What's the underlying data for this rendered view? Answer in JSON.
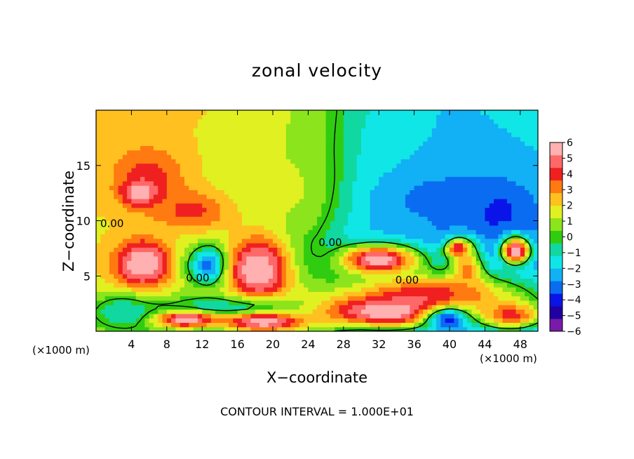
{
  "chart_data": {
    "type": "heatmap",
    "title": "zonal velocity",
    "xlabel": "X−coordinate",
    "ylabel": "Z−coordinate",
    "x_scale_label": "(×1000 m)",
    "xlim": [
      0,
      50
    ],
    "ylim": [
      0,
      20
    ],
    "x_ticks": [
      4,
      8,
      12,
      16,
      20,
      24,
      28,
      32,
      36,
      40,
      44,
      48
    ],
    "y_ticks": [
      5,
      10,
      15
    ],
    "colorbar": {
      "min": -6,
      "max": 6,
      "ticks": [
        6,
        5,
        4,
        3,
        2,
        1,
        0,
        -1,
        -2,
        -3,
        -4,
        -5,
        -6
      ],
      "tick_labels": [
        "6",
        "5",
        "4",
        "3",
        "2",
        "1",
        "0",
        "−1",
        "−2",
        "−3",
        "−4",
        "−5",
        "−6"
      ],
      "colors": [
        "#7a1aa8",
        "#2000a0",
        "#0a14e8",
        "#0a6cf0",
        "#12b0f4",
        "#10e6e6",
        "#10d8a0",
        "#30cc10",
        "#8ce41c",
        "#e0f020",
        "#ffc020",
        "#ff7a10",
        "#f02020",
        "#ff6868",
        "#ffb0b0"
      ]
    },
    "contour_labels": [
      {
        "text": "0.00",
        "x": 1.8,
        "y": 9.7
      },
      {
        "text": "0.00",
        "x": 11.5,
        "y": 4.8
      },
      {
        "text": "0.00",
        "x": 26.5,
        "y": 8.0
      },
      {
        "text": "0.00",
        "x": 35.2,
        "y": 4.6
      }
    ],
    "field": {
      "base_gradient": [
        {
          "x": 0,
          "value": 2.0
        },
        {
          "x": 16,
          "value": 1.5
        },
        {
          "x": 25,
          "value": 0.5
        },
        {
          "x": 30,
          "value": -1.5
        },
        {
          "x": 40,
          "value": -2.5
        },
        {
          "x": 50,
          "value": -2.2
        }
      ],
      "features": [
        {
          "x": 6,
          "y": 14,
          "rx": 4.5,
          "ry": 3,
          "value": 4
        },
        {
          "x": 5,
          "y": 12.5,
          "rx": 2.2,
          "ry": 1.2,
          "value": 6
        },
        {
          "x": 11,
          "y": 11,
          "rx": 5,
          "ry": 2,
          "value": 4
        },
        {
          "x": 20,
          "y": 13,
          "rx": 6,
          "ry": 3,
          "value": 1.5
        },
        {
          "x": 5,
          "y": 6,
          "rx": 3.6,
          "ry": 2.6,
          "value": 5
        },
        {
          "x": 5.5,
          "y": 6.2,
          "rx": 2.4,
          "ry": 1.7,
          "value": 6
        },
        {
          "x": 13,
          "y": 6,
          "rx": 2.6,
          "ry": 1.8,
          "value": -4
        },
        {
          "x": 18.5,
          "y": 5.5,
          "rx": 4,
          "ry": 3.2,
          "value": 5
        },
        {
          "x": 18.5,
          "y": 5.6,
          "rx": 2.8,
          "ry": 2.4,
          "value": 6
        },
        {
          "x": 16,
          "y": 1.3,
          "rx": 12,
          "ry": 1.6,
          "value": -4
        },
        {
          "x": 10,
          "y": 1.1,
          "rx": 5,
          "ry": 0.9,
          "value": 6
        },
        {
          "x": 19,
          "y": 0.9,
          "rx": 6,
          "ry": 1.1,
          "value": 6
        },
        {
          "x": 3,
          "y": 1.8,
          "rx": 4,
          "ry": 1.8,
          "value": -1
        },
        {
          "x": 32,
          "y": 6.5,
          "rx": 7.5,
          "ry": 2.4,
          "value": -4
        },
        {
          "x": 32,
          "y": 6.5,
          "rx": 5.6,
          "ry": 1.7,
          "value": 6
        },
        {
          "x": 45,
          "y": 11,
          "rx": 5,
          "ry": 3,
          "value": -4
        },
        {
          "x": 38,
          "y": 12,
          "rx": 7,
          "ry": 3,
          "value": -3
        },
        {
          "x": 47.5,
          "y": 7.2,
          "rx": 3.2,
          "ry": 2.3,
          "value": -4
        },
        {
          "x": 47.5,
          "y": 7.3,
          "rx": 1.9,
          "ry": 1.4,
          "value": 6
        },
        {
          "x": 41,
          "y": 7.5,
          "rx": 1.6,
          "ry": 1,
          "value": 5
        },
        {
          "x": 38,
          "y": 3.4,
          "rx": 12,
          "ry": 2.2,
          "value": 4
        },
        {
          "x": 33,
          "y": 1.8,
          "rx": 9,
          "ry": 1.6,
          "value": 6
        },
        {
          "x": 40,
          "y": 1.1,
          "rx": 3,
          "ry": 1.2,
          "value": -4
        },
        {
          "x": 47,
          "y": 1.5,
          "rx": 4,
          "ry": 1.4,
          "value": 4
        },
        {
          "x": 42,
          "y": 5.5,
          "rx": 2,
          "ry": 2.5,
          "value": 3
        }
      ]
    }
  },
  "footnote": "CONTOUR INTERVAL = 1.000E+01"
}
